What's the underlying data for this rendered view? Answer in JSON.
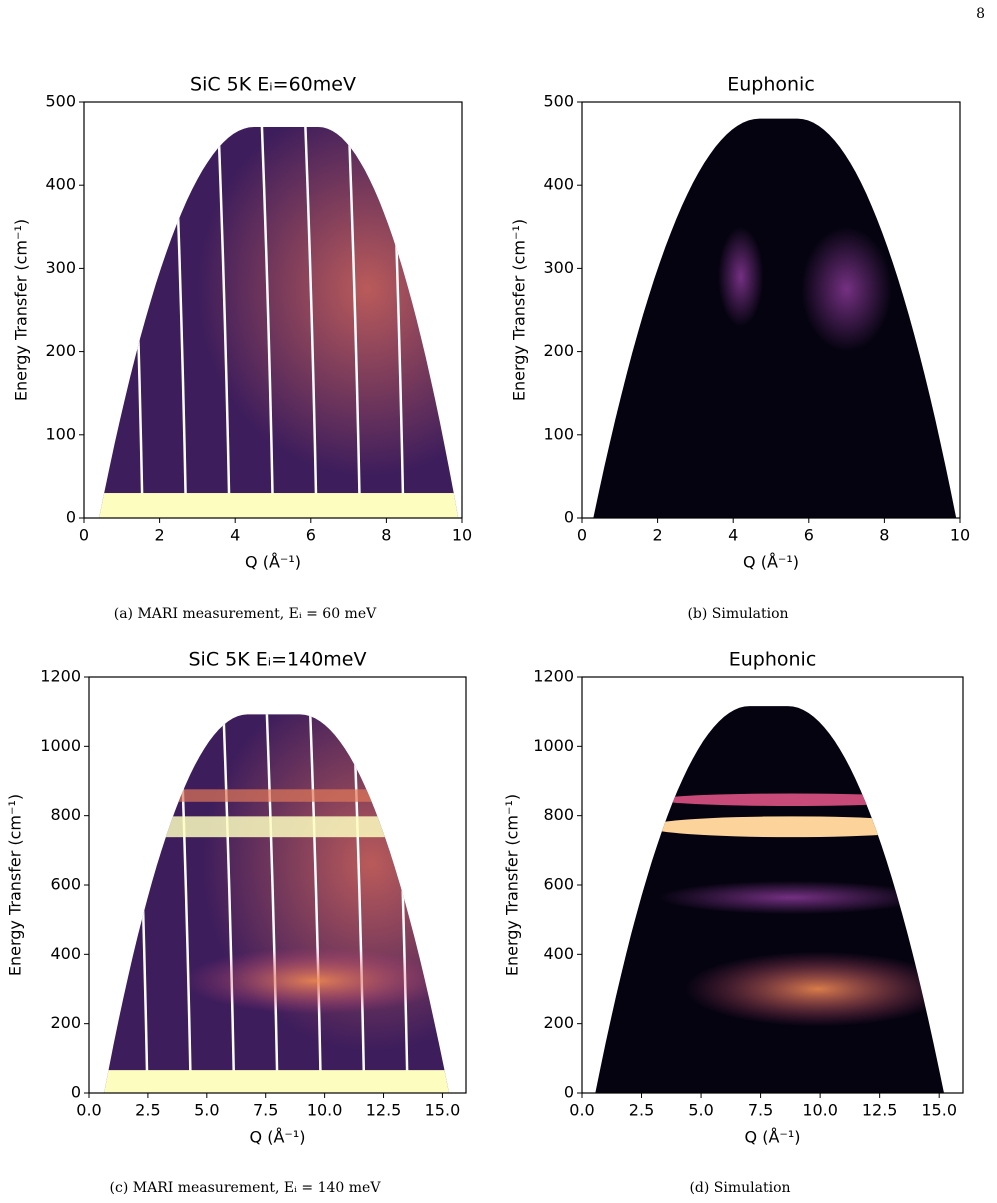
{
  "page_number": "8",
  "chart_data": [
    {
      "type": "heatmap",
      "title": "SiC 5K Eᵢ=60meV",
      "x_label": "Q (Å⁻¹)",
      "y_label": "Energy Transfer (cm⁻¹)",
      "xlim": [
        0,
        10
      ],
      "xticks": [
        0,
        2,
        4,
        6,
        8,
        10
      ],
      "ylim": [
        0,
        500
      ],
      "yticks": [
        0,
        100,
        200,
        300,
        400,
        500
      ],
      "caption": "(a) MARI measurement, Eᵢ = 60 meV"
    },
    {
      "type": "heatmap",
      "title": "Euphonic",
      "x_label": "Q (Å⁻¹)",
      "y_label": "Energy Transfer (cm⁻¹)",
      "xlim": [
        0,
        10
      ],
      "xticks": [
        0,
        2,
        4,
        6,
        8,
        10
      ],
      "ylim": [
        0,
        500
      ],
      "yticks": [
        0,
        100,
        200,
        300,
        400,
        500
      ],
      "caption": "(b) Simulation"
    },
    {
      "type": "heatmap",
      "title": "SiC 5K Eᵢ=140meV",
      "x_label": "Q (Å⁻¹)",
      "y_label": "Energy Transfer (cm⁻¹)",
      "xlim": [
        0,
        16
      ],
      "xticks": [
        {
          "value": 0,
          "label": "0.0"
        },
        2.5,
        {
          "value": 5,
          "label": "5.0"
        },
        7.5,
        {
          "value": 10,
          "label": "10.0"
        },
        12.5,
        {
          "value": 15,
          "label": "15.0"
        }
      ],
      "ylim": [
        0,
        1200
      ],
      "yticks": [
        0,
        200,
        400,
        600,
        800,
        1000,
        1200
      ],
      "caption": "(c) MARI measurement, Eᵢ = 140 meV"
    },
    {
      "type": "heatmap",
      "title": "Euphonic",
      "x_label": "Q (Å⁻¹)",
      "y_label": "Energy Transfer (cm⁻¹)",
      "xlim": [
        0,
        16
      ],
      "xticks": [
        {
          "value": 0,
          "label": "0.0"
        },
        2.5,
        {
          "value": 5,
          "label": "5.0"
        },
        7.5,
        {
          "value": 10,
          "label": "10.0"
        },
        12.5,
        {
          "value": 15,
          "label": "15.0"
        }
      ],
      "ylim": [
        0,
        1200
      ],
      "yticks": [
        0,
        200,
        400,
        600,
        800,
        1000,
        1200
      ],
      "caption": "(d) Simulation"
    }
  ]
}
